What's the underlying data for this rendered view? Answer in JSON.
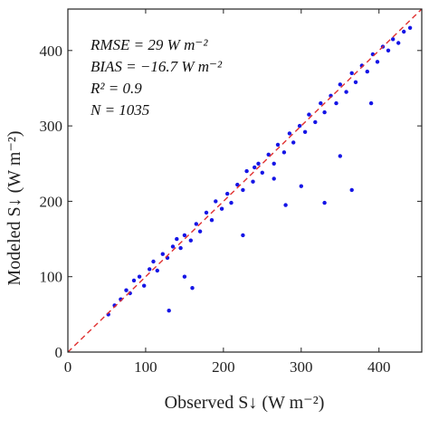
{
  "chart_data": {
    "type": "scatter",
    "xlabel": "Observed S↓ (W m⁻²)",
    "ylabel": "Modeled S↓ (W m⁻²)",
    "xlim": [
      0,
      455
    ],
    "ylim": [
      0,
      455
    ],
    "x_ticks": [
      0,
      100,
      200,
      300,
      400
    ],
    "y_ticks": [
      0,
      100,
      200,
      300,
      400
    ],
    "grid": false,
    "reference_line": {
      "style": "dashed",
      "color": "#e03030",
      "from": [
        0,
        0
      ],
      "to": [
        455,
        455
      ]
    },
    "marker_color": "#1515e6",
    "annotations": [
      "RMSE = 29 W m⁻²",
      "BIAS = −16.7 W m⁻²",
      "R² = 0.9",
      "N = 1035"
    ],
    "point_count": 1035,
    "points_sample": [
      [
        52,
        50
      ],
      [
        60,
        62
      ],
      [
        68,
        70
      ],
      [
        75,
        82
      ],
      [
        80,
        78
      ],
      [
        85,
        95
      ],
      [
        92,
        100
      ],
      [
        98,
        88
      ],
      [
        105,
        110
      ],
      [
        110,
        120
      ],
      [
        115,
        108
      ],
      [
        122,
        130
      ],
      [
        128,
        125
      ],
      [
        135,
        140
      ],
      [
        140,
        150
      ],
      [
        145,
        138
      ],
      [
        150,
        155
      ],
      [
        158,
        148
      ],
      [
        165,
        170
      ],
      [
        170,
        160
      ],
      [
        178,
        185
      ],
      [
        185,
        175
      ],
      [
        190,
        200
      ],
      [
        198,
        190
      ],
      [
        205,
        210
      ],
      [
        210,
        198
      ],
      [
        218,
        222
      ],
      [
        225,
        215
      ],
      [
        230,
        240
      ],
      [
        238,
        226
      ],
      [
        245,
        250
      ],
      [
        250,
        238
      ],
      [
        258,
        262
      ],
      [
        265,
        250
      ],
      [
        270,
        275
      ],
      [
        278,
        265
      ],
      [
        285,
        290
      ],
      [
        290,
        278
      ],
      [
        298,
        300
      ],
      [
        305,
        292
      ],
      [
        310,
        315
      ],
      [
        318,
        305
      ],
      [
        325,
        330
      ],
      [
        330,
        318
      ],
      [
        338,
        340
      ],
      [
        345,
        330
      ],
      [
        350,
        355
      ],
      [
        358,
        345
      ],
      [
        365,
        370
      ],
      [
        370,
        358
      ],
      [
        378,
        380
      ],
      [
        385,
        372
      ],
      [
        392,
        395
      ],
      [
        398,
        385
      ],
      [
        405,
        405
      ],
      [
        412,
        400
      ],
      [
        418,
        415
      ],
      [
        425,
        410
      ],
      [
        432,
        425
      ],
      [
        440,
        430
      ],
      [
        240,
        245
      ],
      [
        265,
        230
      ],
      [
        300,
        220
      ],
      [
        160,
        85
      ],
      [
        130,
        55
      ],
      [
        330,
        198
      ],
      [
        365,
        215
      ],
      [
        225,
        155
      ],
      [
        150,
        100
      ],
      [
        390,
        330
      ],
      [
        280,
        195
      ],
      [
        350,
        260
      ]
    ]
  }
}
